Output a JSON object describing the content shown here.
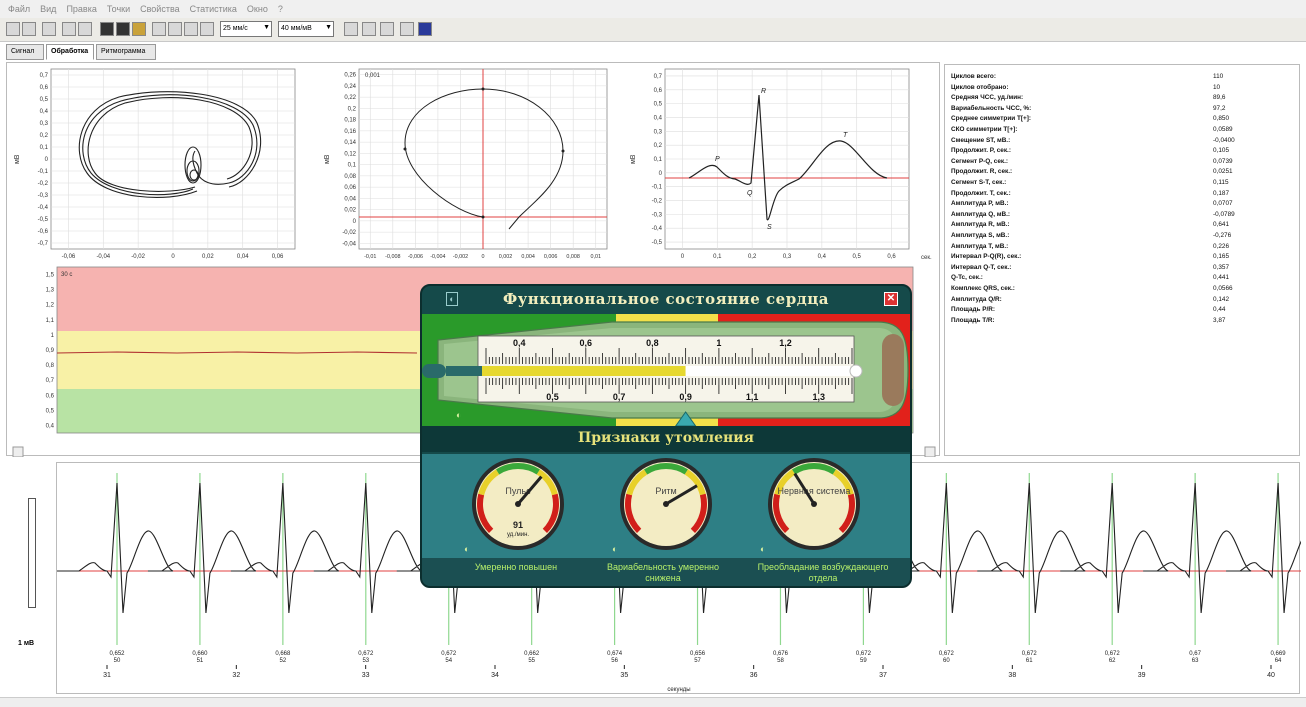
{
  "menu": {
    "items": [
      "Файл",
      "Вид",
      "Правка",
      "Точки",
      "Свойства",
      "Статистика",
      "Окно",
      "?"
    ]
  },
  "toolbar": {
    "speed_combo": "25 мм/с",
    "amp_combo": "40 мм/мВ"
  },
  "tabs": [
    {
      "label": "Сигнал",
      "active": false
    },
    {
      "label": "Обработка",
      "active": true
    },
    {
      "label": "Ритмограмма",
      "active": false
    }
  ],
  "plots": {
    "loop1": {
      "ylabel": "мВ",
      "y_ticks": [
        "0,7",
        "0,6",
        "0,5",
        "0,4",
        "0,3",
        "0,2",
        "0,1",
        "0",
        "-0,1",
        "-0,2",
        "-0,3",
        "-0,4",
        "-0,5",
        "-0,6",
        "-0,7"
      ],
      "x_ticks": [
        "-0,06",
        "-0,04",
        "-0,02",
        "0",
        "0,02",
        "0,04",
        "0,06"
      ]
    },
    "loop2": {
      "ylabel": "мВ",
      "corner_label": "0,001",
      "y_ticks": [
        "0,26",
        "0,24",
        "0,22",
        "0,2",
        "0,18",
        "0,16",
        "0,14",
        "0,12",
        "0,1",
        "0,08",
        "0,06",
        "0,04",
        "0,02",
        "0",
        "-0,02",
        "-0,04"
      ],
      "x_ticks": [
        "-0,01",
        "-0,008",
        "-0,006",
        "-0,004",
        "-0,002",
        "0",
        "0,002",
        "0,004",
        "0,006",
        "0,008",
        "0,01"
      ]
    },
    "complex": {
      "ylabel": "мВ",
      "xlabel": "сек.",
      "y_ticks": [
        "0,7",
        "0,6",
        "0,5",
        "0,4",
        "0,3",
        "0,2",
        "0,1",
        "0",
        "-0,1",
        "-0,2",
        "-0,3",
        "-0,4",
        "-0,5"
      ],
      "x_ticks": [
        "0",
        "0,1",
        "0,2",
        "0,3",
        "0,4",
        "0,5",
        "0,6"
      ],
      "wave_labels": [
        "P",
        "Q",
        "R",
        "S",
        "T"
      ]
    },
    "trend": {
      "corner_label": "30 с",
      "y_ticks": [
        "1,5",
        "1,3",
        "1,2",
        "1,1",
        "1",
        "0,9",
        "0,8",
        "0,7",
        "0,6",
        "0,5",
        "0,4"
      ],
      "zone_colors": {
        "red": "#f6b3b0",
        "yellow": "#f8f1a6",
        "green": "#b8e3a4"
      }
    }
  },
  "stats": [
    {
      "label": "Циклов всего:",
      "value": "110"
    },
    {
      "label": "Циклов отобрано:",
      "value": "10"
    },
    {
      "label": "Средняя ЧСС, уд./мин:",
      "value": "89,6"
    },
    {
      "label": "Вариабельность ЧСС, %:",
      "value": "97,2"
    },
    {
      "label": "Среднее симметрии T[+]:",
      "value": "0,850"
    },
    {
      "label": "СКО симметрии T[+]:",
      "value": "0,0589"
    },
    {
      "label": "Смещение ST, мВ.:",
      "value": "-0,0400"
    },
    {
      "label": "Продолжит. P, сек.:",
      "value": "0,105"
    },
    {
      "label": "Сегмент P-Q, сек.:",
      "value": "0,0739"
    },
    {
      "label": "Продолжит. R, сек.:",
      "value": "0,0251"
    },
    {
      "label": "Сегмент S-T, сек.:",
      "value": "0,115"
    },
    {
      "label": "Продолжит. T, сек.:",
      "value": "0,187"
    },
    {
      "label": "Амплитуда P, мВ.:",
      "value": "0,0707"
    },
    {
      "label": "Амплитуда Q, мВ.:",
      "value": "-0,0789"
    },
    {
      "label": "Амплитуда R, мВ.:",
      "value": "0,641"
    },
    {
      "label": "Амплитуда S, мВ.:",
      "value": "-0,276"
    },
    {
      "label": "Амплитуда T, мВ.:",
      "value": "0,226"
    },
    {
      "label": "Интервал P-Q(R), сек.:",
      "value": "0,165"
    },
    {
      "label": "Интервал Q-T, сек.:",
      "value": "0,357"
    },
    {
      "label": "Q-Tc, сек.:",
      "value": "0,441"
    },
    {
      "label": "Комплекс QRS, сек.:",
      "value": "0,0566"
    },
    {
      "label": "Амплитуда Q/R:",
      "value": "0,142"
    },
    {
      "label": "Площадь P/R:",
      "value": "0,44"
    },
    {
      "label": "Площадь T/R:",
      "value": "3,87"
    }
  ],
  "dialog": {
    "title": "Функциональное состояние сердца",
    "close_glyph": "✕",
    "thermometer": {
      "top_ticks": [
        "0,4",
        "0,6",
        "0,8",
        "1",
        "1,2"
      ],
      "bottom_ticks": [
        "0,5",
        "0,7",
        "0,9",
        "1,1",
        "1,3"
      ],
      "value": 0.9,
      "range": [
        0.3,
        1.4
      ]
    },
    "subtitle": "Признаки утомления",
    "gauges": [
      {
        "title": "Пульс",
        "reading": "91",
        "unit": "уд./мин.",
        "caption": "Умеренно повышен",
        "needle_fraction": 0.65
      },
      {
        "title": "Ритм",
        "reading": "",
        "unit": "",
        "caption": "Вариабельность умеренно снижена",
        "needle_fraction": 0.72
      },
      {
        "title": "Нервная система",
        "reading": "",
        "unit": "",
        "caption": "Преобладание возбуждающего отдела",
        "needle_fraction": 0.38
      }
    ]
  },
  "ecg": {
    "time_labels": [
      "31",
      "32",
      "33",
      "34",
      "35",
      "36",
      "37",
      "38",
      "39",
      "40"
    ],
    "xlabel": "секунды",
    "rr_labels": [
      {
        "value": "0,652",
        "num": "50"
      },
      {
        "value": "0,660",
        "num": "51"
      },
      {
        "value": "0,668",
        "num": "52"
      },
      {
        "value": "0,672",
        "num": "53"
      },
      {
        "value": "0,672",
        "num": "54"
      },
      {
        "value": "0,662",
        "num": "55"
      },
      {
        "value": "0,674",
        "num": "56"
      },
      {
        "value": "0,656",
        "num": "57"
      },
      {
        "value": "0,676",
        "num": "58"
      },
      {
        "value": "0,672",
        "num": "59"
      },
      {
        "value": "0,672",
        "num": "60"
      },
      {
        "value": "0,672",
        "num": "61"
      },
      {
        "value": "0,672",
        "num": "62"
      },
      {
        "value": "0,67",
        "num": "63"
      },
      {
        "value": "0,669",
        "num": "64"
      }
    ],
    "scale_label": "1 мВ"
  }
}
